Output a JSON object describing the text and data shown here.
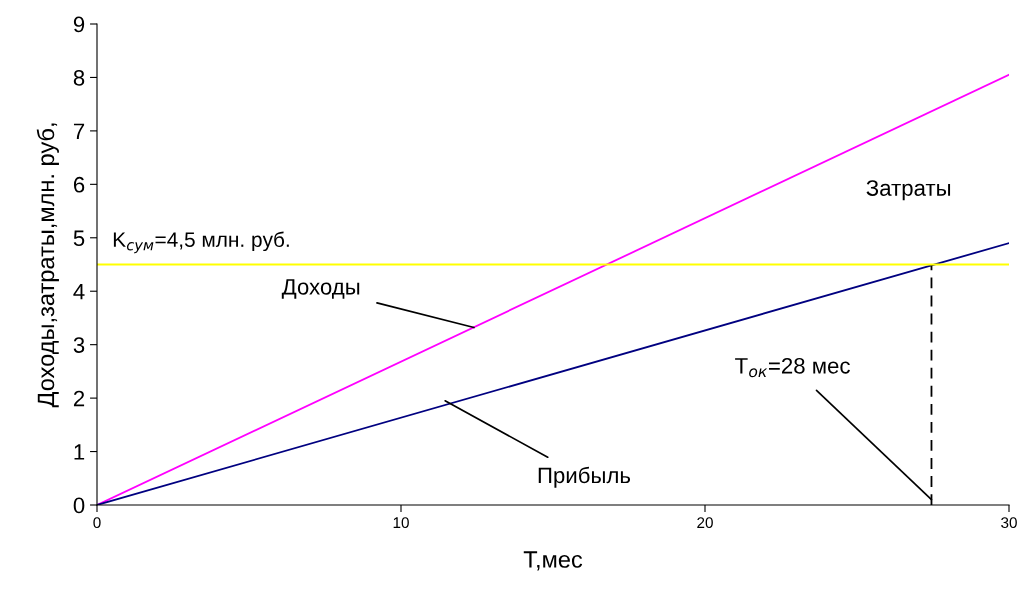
{
  "chart_data": {
    "type": "line",
    "xlabel": "T,мес",
    "ylabel": "Доходы,затраты,млн. руб,",
    "x": [
      0,
      30
    ],
    "series": [
      {
        "color": "#ff00ff",
        "values": [
          0,
          8.05
        ]
      },
      {
        "color": "#000080",
        "values": [
          0,
          4.9
        ]
      },
      {
        "color": "#000000",
        "x": [
          27.45,
          27.45
        ],
        "values": [
          0,
          4.5
        ],
        "line_style": "dashed"
      }
    ],
    "ref_lines": [
      {
        "axis": "y",
        "value": 4.5,
        "label": "K$_{сум}$=4,5 млн. руб.",
        "color": "#ffff00"
      }
    ],
    "annotations": [
      {
        "text": "Доходы",
        "x": 12.4,
        "y": 3.32
      },
      {
        "text": "Прибыль",
        "x": 11.45,
        "y": 1.95
      },
      {
        "text": "T$_{ок}$=28 мес",
        "x": 27.45,
        "y": 0.1
      },
      "Затраты"
    ],
    "xlim": [
      0,
      30
    ],
    "xticks": [
      0,
      10,
      20,
      30
    ],
    "ylim": [
      0,
      9
    ],
    "yticks": [
      0,
      1,
      2,
      3,
      4,
      5,
      6,
      7,
      8,
      9
    ],
    "grid": false,
    "legend": false,
    "marker": "none",
    "line_style": "solid"
  }
}
